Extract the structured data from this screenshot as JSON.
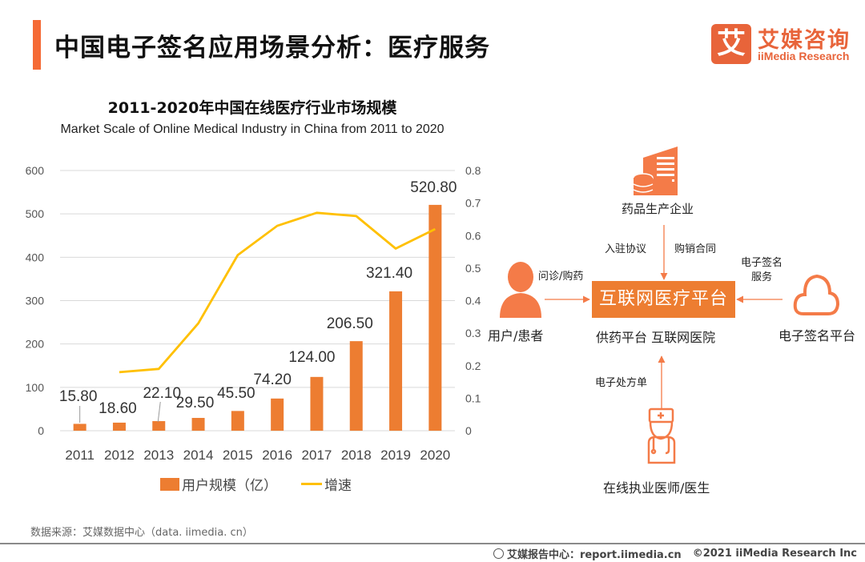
{
  "header": {
    "title": "中国电子签名应用场景分析：医疗服务",
    "accent_color": "#f56a35",
    "logo": {
      "mark": "艾",
      "name_cn": "艾媒咨询",
      "name_en": "iiMedia Research",
      "color": "#e8643a"
    }
  },
  "chart_data": {
    "type": "bar",
    "title": "2011-2020年中国在线医疗行业市场规模",
    "subtitle": "Market Scale of Online Medical Industry in China from 2011 to 2020",
    "categories": [
      "2011",
      "2012",
      "2013",
      "2014",
      "2015",
      "2016",
      "2017",
      "2018",
      "2019",
      "2020"
    ],
    "series": [
      {
        "name": "用户规模（亿）",
        "kind": "bar",
        "axis": "left",
        "color": "#ed7d31",
        "values": [
          15.8,
          18.6,
          22.1,
          29.5,
          45.5,
          74.2,
          124.0,
          206.5,
          321.4,
          520.8
        ],
        "labels": [
          "15.80",
          "18.60",
          "22.10",
          "29.50",
          "45.50",
          "74.20",
          "124.00",
          "206.50",
          "321.40",
          "520.80"
        ]
      },
      {
        "name": "增速",
        "kind": "line",
        "axis": "right",
        "color": "#ffc000",
        "values": [
          null,
          0.18,
          0.19,
          0.33,
          0.54,
          0.63,
          0.67,
          0.66,
          0.56,
          0.62
        ]
      }
    ],
    "y_left": {
      "ylim": [
        0,
        600
      ],
      "ticks": [
        "0",
        "100",
        "200",
        "300",
        "400",
        "500",
        "600"
      ]
    },
    "y_right": {
      "ylim": [
        0,
        0.8
      ],
      "ticks": [
        "0",
        "0.1",
        "0.2",
        "0.3",
        "0.4",
        "0.5",
        "0.6",
        "0.7",
        "0.8"
      ]
    },
    "xlabel": "",
    "ylabel": "",
    "grid": true,
    "legend": "bottom"
  },
  "legend": {
    "bar_label": "用户规模（亿）",
    "line_label": "增速"
  },
  "diagram": {
    "pharma": "药品生产企业",
    "pharma_edge_left": "入驻协议",
    "pharma_edge_right": "购销合同",
    "user": "用户/患者",
    "user_edge": "问诊/购药",
    "platform": "互联网医疗平台",
    "platform_sub": "供药平台 互联网医院",
    "esign": "电子签名平台",
    "esign_edge_line1": "电子签名",
    "esign_edge_line2": "服务",
    "doctor": "在线执业医师/医生",
    "doctor_edge": "电子处方单",
    "icon_color": "#f47b48"
  },
  "footer": {
    "source": "数据来源：艾媒数据中心（data. iimedia. cn）",
    "report": "艾媒报告中心：report.iimedia.cn",
    "copyright": "©2021  iiMedia Research  Inc"
  }
}
